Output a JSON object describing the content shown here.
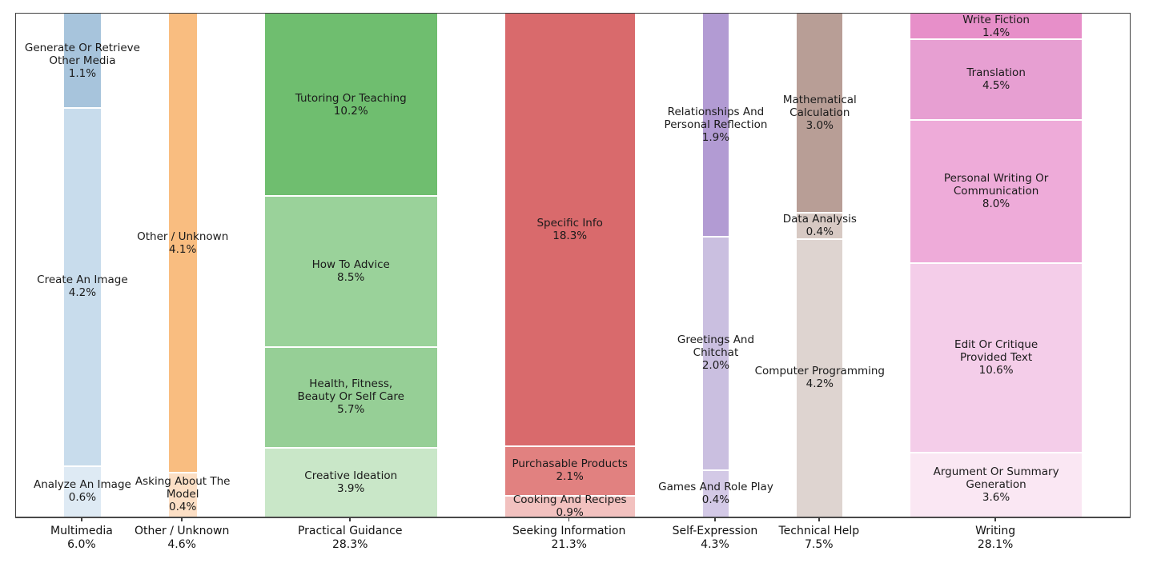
{
  "figure": {
    "background": "#ffffff",
    "text_color": "#1a1a1a",
    "frame_color": "#404040"
  },
  "chart_data": {
    "type": "mosaic",
    "title": "",
    "legend": "none",
    "grid": false,
    "notes": "Marimekko/mosaic chart: column width proportional to category share, segment height proportional to subcategory share within category",
    "categories": [
      {
        "label": "Multimedia",
        "pct": 6.0,
        "pct_label": "6.0%",
        "segments": [
          {
            "label": "Generate Or Retrieve\nOther Media",
            "pct": 1.1,
            "pct_label": "1.1%",
            "color": "#a7c4dc"
          },
          {
            "label": "Create An Image",
            "pct": 4.2,
            "pct_label": "4.2%",
            "color": "#c8dcec"
          },
          {
            "label": "Analyze An Image",
            "pct": 0.6,
            "pct_label": "0.6%",
            "color": "#deeaf4"
          }
        ]
      },
      {
        "label": "Other / Unknown",
        "pct": 4.6,
        "pct_label": "4.6%",
        "segments": [
          {
            "label": "Other / Unknown",
            "pct": 4.1,
            "pct_label": "4.1%",
            "color": "#f9bd80"
          },
          {
            "label": "Asking About The\nModel",
            "pct": 0.4,
            "pct_label": "0.4%",
            "color": "#fcdfc5"
          }
        ]
      },
      {
        "label": "Practical Guidance",
        "pct": 28.3,
        "pct_label": "28.3%",
        "segments": [
          {
            "label": "Tutoring Or Teaching",
            "pct": 10.2,
            "pct_label": "10.2%",
            "color": "#6fbe6f"
          },
          {
            "label": "How To Advice",
            "pct": 8.5,
            "pct_label": "8.5%",
            "color": "#9ad29a"
          },
          {
            "label": "Health, Fitness,\nBeauty Or Self Care",
            "pct": 5.7,
            "pct_label": "5.7%",
            "color": "#96cf96"
          },
          {
            "label": "Creative Ideation",
            "pct": 3.9,
            "pct_label": "3.9%",
            "color": "#c9e7c8"
          }
        ]
      },
      {
        "label": "Seeking Information",
        "pct": 21.3,
        "pct_label": "21.3%",
        "segments": [
          {
            "label": "Specific Info",
            "pct": 18.3,
            "pct_label": "18.3%",
            "color": "#d96a6c"
          },
          {
            "label": "Purchasable Products",
            "pct": 2.1,
            "pct_label": "2.1%",
            "color": "#e18180"
          },
          {
            "label": "Cooking And Recipes",
            "pct": 0.9,
            "pct_label": "0.9%",
            "color": "#f2c1bf"
          }
        ]
      },
      {
        "label": "Self-Expression",
        "pct": 4.3,
        "pct_label": "4.3%",
        "segments": [
          {
            "label": "Relationships And\nPersonal Reflection",
            "pct": 1.9,
            "pct_label": "1.9%",
            "color": "#b29bd3"
          },
          {
            "label": "Greetings And\nChitchat",
            "pct": 2.0,
            "pct_label": "2.0%",
            "color": "#cabfe0"
          },
          {
            "label": "Games And Role Play",
            "pct": 0.4,
            "pct_label": "0.4%",
            "color": "#d3c9e6"
          }
        ]
      },
      {
        "label": "Technical Help",
        "pct": 7.5,
        "pct_label": "7.5%",
        "segments": [
          {
            "label": "Mathematical\nCalculation",
            "pct": 3.0,
            "pct_label": "3.0%",
            "color": "#b89e96"
          },
          {
            "label": "Data Analysis",
            "pct": 0.4,
            "pct_label": "0.4%",
            "color": "#d7c9c3"
          },
          {
            "label": "Computer Programming",
            "pct": 4.2,
            "pct_label": "4.2%",
            "color": "#ded4d0"
          }
        ]
      },
      {
        "label": "Writing",
        "pct": 28.1,
        "pct_label": "28.1%",
        "segments": [
          {
            "label": "Write Fiction",
            "pct": 1.4,
            "pct_label": "1.4%",
            "color": "#e78fc9"
          },
          {
            "label": "Translation",
            "pct": 4.5,
            "pct_label": "4.5%",
            "color": "#e79fd2"
          },
          {
            "label": "Personal Writing Or\nCommunication",
            "pct": 8.0,
            "pct_label": "8.0%",
            "color": "#eeabd9"
          },
          {
            "label": "Edit Or Critique\nProvided Text",
            "pct": 10.6,
            "pct_label": "10.6%",
            "color": "#f4cde9"
          },
          {
            "label": "Argument Or Summary\nGeneration",
            "pct": 3.6,
            "pct_label": "3.6%",
            "color": "#fae7f3"
          }
        ]
      }
    ]
  }
}
